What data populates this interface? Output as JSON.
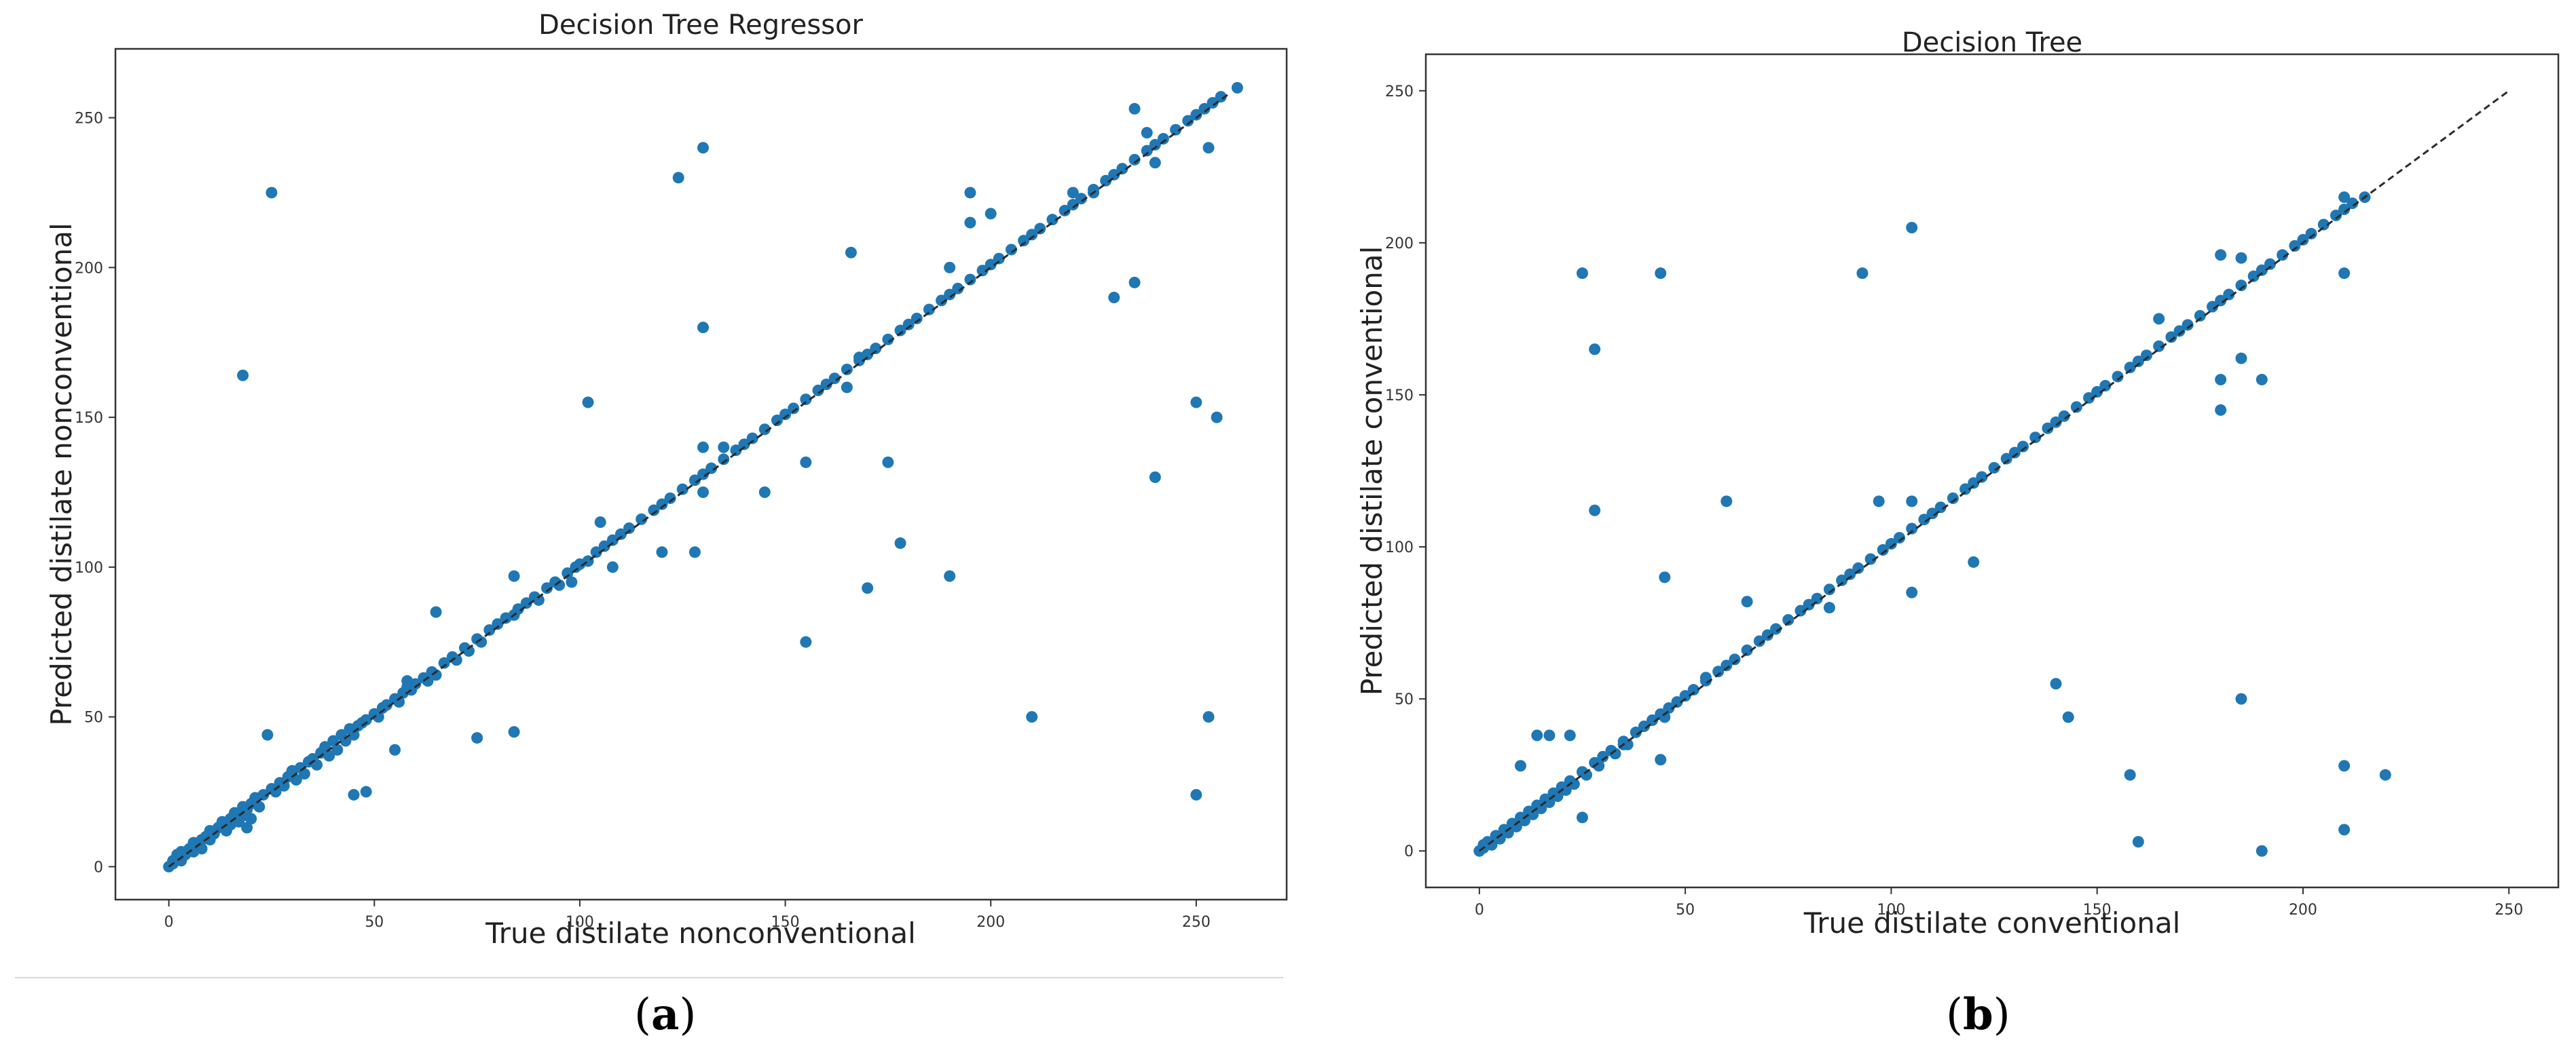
{
  "chart_data": [
    {
      "type": "scatter",
      "title": "Decision Tree Regressor",
      "xlabel": "True distilate nonconventional",
      "ylabel": "Predicted distilate nonconventional",
      "xlim": [
        -13,
        272
      ],
      "ylim": [
        -11,
        273
      ],
      "xticks": [
        0,
        50,
        100,
        150,
        200,
        250
      ],
      "yticks": [
        0,
        50,
        100,
        150,
        200,
        250
      ],
      "grid": false,
      "diagonal": [
        0,
        258
      ],
      "panel_label_open": "(",
      "panel_label_letter": "a",
      "panel_label_close": ")",
      "points": [
        [
          0,
          0
        ],
        [
          1,
          2
        ],
        [
          1,
          1
        ],
        [
          2,
          3
        ],
        [
          2,
          4
        ],
        [
          3,
          2
        ],
        [
          3,
          5
        ],
        [
          4,
          4
        ],
        [
          5,
          6
        ],
        [
          6,
          5
        ],
        [
          6,
          8
        ],
        [
          7,
          7
        ],
        [
          8,
          9
        ],
        [
          8,
          6
        ],
        [
          9,
          10
        ],
        [
          10,
          9
        ],
        [
          10,
          12
        ],
        [
          11,
          11
        ],
        [
          12,
          13
        ],
        [
          13,
          15
        ],
        [
          14,
          12
        ],
        [
          15,
          14
        ],
        [
          15,
          16
        ],
        [
          16,
          18
        ],
        [
          17,
          15
        ],
        [
          18,
          20
        ],
        [
          18,
          17
        ],
        [
          19,
          19
        ],
        [
          19,
          13
        ],
        [
          20,
          21
        ],
        [
          20,
          16
        ],
        [
          21,
          23
        ],
        [
          22,
          20
        ],
        [
          23,
          24
        ],
        [
          25,
          26
        ],
        [
          26,
          25
        ],
        [
          27,
          28
        ],
        [
          28,
          27
        ],
        [
          29,
          30
        ],
        [
          30,
          32
        ],
        [
          31,
          29
        ],
        [
          32,
          33
        ],
        [
          33,
          31
        ],
        [
          34,
          35
        ],
        [
          35,
          36
        ],
        [
          36,
          34
        ],
        [
          37,
          38
        ],
        [
          38,
          40
        ],
        [
          39,
          37
        ],
        [
          40,
          42
        ],
        [
          41,
          39
        ],
        [
          42,
          44
        ],
        [
          43,
          42
        ],
        [
          44,
          46
        ],
        [
          45,
          44
        ],
        [
          46,
          47
        ],
        [
          47,
          48
        ],
        [
          48,
          49
        ],
        [
          50,
          51
        ],
        [
          51,
          50
        ],
        [
          52,
          53
        ],
        [
          53,
          54
        ],
        [
          55,
          56
        ],
        [
          56,
          55
        ],
        [
          57,
          58
        ],
        [
          58,
          60
        ],
        [
          59,
          59
        ],
        [
          60,
          61
        ],
        [
          62,
          63
        ],
        [
          63,
          62
        ],
        [
          64,
          65
        ],
        [
          65,
          64
        ],
        [
          67,
          68
        ],
        [
          69,
          70
        ],
        [
          70,
          69
        ],
        [
          72,
          73
        ],
        [
          73,
          72
        ],
        [
          75,
          76
        ],
        [
          76,
          75
        ],
        [
          78,
          79
        ],
        [
          80,
          81
        ],
        [
          82,
          83
        ],
        [
          84,
          84
        ],
        [
          85,
          86
        ],
        [
          87,
          88
        ],
        [
          89,
          90
        ],
        [
          90,
          89
        ],
        [
          92,
          93
        ],
        [
          94,
          95
        ],
        [
          95,
          94
        ],
        [
          97,
          98
        ],
        [
          99,
          100
        ],
        [
          100,
          101
        ],
        [
          102,
          102
        ],
        [
          104,
          105
        ],
        [
          106,
          107
        ],
        [
          108,
          109
        ],
        [
          110,
          111
        ],
        [
          112,
          113
        ],
        [
          115,
          116
        ],
        [
          118,
          119
        ],
        [
          120,
          121
        ],
        [
          122,
          123
        ],
        [
          125,
          126
        ],
        [
          128,
          129
        ],
        [
          130,
          131
        ],
        [
          132,
          133
        ],
        [
          135,
          136
        ],
        [
          138,
          139
        ],
        [
          140,
          141
        ],
        [
          142,
          143
        ],
        [
          145,
          146
        ],
        [
          148,
          149
        ],
        [
          150,
          151
        ],
        [
          152,
          153
        ],
        [
          155,
          156
        ],
        [
          158,
          159
        ],
        [
          160,
          161
        ],
        [
          162,
          163
        ],
        [
          165,
          166
        ],
        [
          168,
          169
        ],
        [
          170,
          171
        ],
        [
          172,
          173
        ],
        [
          175,
          176
        ],
        [
          178,
          179
        ],
        [
          180,
          181
        ],
        [
          182,
          183
        ],
        [
          185,
          186
        ],
        [
          188,
          189
        ],
        [
          190,
          191
        ],
        [
          192,
          193
        ],
        [
          195,
          196
        ],
        [
          198,
          199
        ],
        [
          200,
          201
        ],
        [
          202,
          203
        ],
        [
          205,
          206
        ],
        [
          208,
          209
        ],
        [
          210,
          211
        ],
        [
          212,
          213
        ],
        [
          215,
          216
        ],
        [
          218,
          219
        ],
        [
          220,
          221
        ],
        [
          222,
          223
        ],
        [
          225,
          226
        ],
        [
          228,
          229
        ],
        [
          230,
          231
        ],
        [
          232,
          233
        ],
        [
          235,
          236
        ],
        [
          238,
          239
        ],
        [
          240,
          241
        ],
        [
          242,
          243
        ],
        [
          245,
          246
        ],
        [
          248,
          249
        ],
        [
          250,
          251
        ],
        [
          252,
          253
        ],
        [
          254,
          255
        ],
        [
          256,
          257
        ],
        [
          260,
          260
        ],
        [
          25,
          225
        ],
        [
          18,
          164
        ],
        [
          24,
          44
        ],
        [
          45,
          24
        ],
        [
          48,
          25
        ],
        [
          55,
          39
        ],
        [
          58,
          62
        ],
        [
          65,
          85
        ],
        [
          75,
          43
        ],
        [
          84,
          45
        ],
        [
          84,
          97
        ],
        [
          98,
          95
        ],
        [
          102,
          155
        ],
        [
          105,
          115
        ],
        [
          108,
          100
        ],
        [
          120,
          105
        ],
        [
          124,
          230
        ],
        [
          128,
          105
        ],
        [
          130,
          240
        ],
        [
          130,
          180
        ],
        [
          130,
          140
        ],
        [
          130,
          125
        ],
        [
          135,
          140
        ],
        [
          145,
          125
        ],
        [
          155,
          135
        ],
        [
          155,
          75
        ],
        [
          165,
          160
        ],
        [
          166,
          205
        ],
        [
          168,
          170
        ],
        [
          170,
          93
        ],
        [
          175,
          135
        ],
        [
          178,
          108
        ],
        [
          190,
          200
        ],
        [
          190,
          97
        ],
        [
          195,
          225
        ],
        [
          195,
          215
        ],
        [
          200,
          218
        ],
        [
          210,
          50
        ],
        [
          220,
          225
        ],
        [
          225,
          225
        ],
        [
          230,
          190
        ],
        [
          235,
          195
        ],
        [
          235,
          253
        ],
        [
          238,
          245
        ],
        [
          240,
          235
        ],
        [
          240,
          130
        ],
        [
          250,
          155
        ],
        [
          250,
          24
        ],
        [
          253,
          240
        ],
        [
          253,
          50
        ],
        [
          255,
          150
        ]
      ]
    },
    {
      "type": "scatter",
      "title": "Decision Tree",
      "xlabel": "True distilate conventional",
      "ylabel": "Predicted distilate conventional",
      "xlim": [
        -13,
        262
      ],
      "ylim": [
        -12,
        262
      ],
      "xticks": [
        0,
        50,
        100,
        150,
        200,
        250
      ],
      "yticks": [
        0,
        50,
        100,
        150,
        200,
        250
      ],
      "grid": false,
      "diagonal": [
        0,
        250
      ],
      "panel_label_open": "(",
      "panel_label_letter": "b",
      "panel_label_close": ")",
      "points": [
        [
          0,
          0
        ],
        [
          1,
          1
        ],
        [
          1,
          2
        ],
        [
          2,
          3
        ],
        [
          3,
          2
        ],
        [
          4,
          5
        ],
        [
          5,
          4
        ],
        [
          6,
          7
        ],
        [
          7,
          6
        ],
        [
          8,
          9
        ],
        [
          9,
          8
        ],
        [
          10,
          11
        ],
        [
          11,
          10
        ],
        [
          12,
          13
        ],
        [
          13,
          12
        ],
        [
          14,
          15
        ],
        [
          15,
          14
        ],
        [
          16,
          17
        ],
        [
          17,
          16
        ],
        [
          18,
          19
        ],
        [
          19,
          18
        ],
        [
          20,
          21
        ],
        [
          21,
          20
        ],
        [
          22,
          23
        ],
        [
          23,
          22
        ],
        [
          25,
          26
        ],
        [
          26,
          25
        ],
        [
          28,
          29
        ],
        [
          29,
          28
        ],
        [
          30,
          31
        ],
        [
          32,
          33
        ],
        [
          33,
          32
        ],
        [
          35,
          36
        ],
        [
          36,
          35
        ],
        [
          38,
          39
        ],
        [
          40,
          41
        ],
        [
          42,
          43
        ],
        [
          44,
          45
        ],
        [
          45,
          44
        ],
        [
          46,
          47
        ],
        [
          48,
          49
        ],
        [
          50,
          51
        ],
        [
          52,
          53
        ],
        [
          55,
          56
        ],
        [
          58,
          59
        ],
        [
          60,
          61
        ],
        [
          62,
          63
        ],
        [
          65,
          66
        ],
        [
          68,
          69
        ],
        [
          70,
          71
        ],
        [
          72,
          73
        ],
        [
          75,
          76
        ],
        [
          78,
          79
        ],
        [
          80,
          81
        ],
        [
          82,
          83
        ],
        [
          85,
          86
        ],
        [
          88,
          89
        ],
        [
          90,
          91
        ],
        [
          92,
          93
        ],
        [
          95,
          96
        ],
        [
          98,
          99
        ],
        [
          100,
          101
        ],
        [
          102,
          103
        ],
        [
          105,
          106
        ],
        [
          108,
          109
        ],
        [
          110,
          111
        ],
        [
          112,
          113
        ],
        [
          115,
          116
        ],
        [
          118,
          119
        ],
        [
          120,
          121
        ],
        [
          122,
          123
        ],
        [
          125,
          126
        ],
        [
          128,
          129
        ],
        [
          130,
          131
        ],
        [
          132,
          133
        ],
        [
          135,
          136
        ],
        [
          138,
          139
        ],
        [
          140,
          141
        ],
        [
          142,
          143
        ],
        [
          145,
          146
        ],
        [
          148,
          149
        ],
        [
          150,
          151
        ],
        [
          152,
          153
        ],
        [
          155,
          156
        ],
        [
          158,
          159
        ],
        [
          160,
          161
        ],
        [
          162,
          163
        ],
        [
          165,
          166
        ],
        [
          168,
          169
        ],
        [
          170,
          171
        ],
        [
          172,
          173
        ],
        [
          175,
          176
        ],
        [
          178,
          179
        ],
        [
          180,
          181
        ],
        [
          182,
          183
        ],
        [
          185,
          186
        ],
        [
          188,
          189
        ],
        [
          190,
          191
        ],
        [
          192,
          193
        ],
        [
          195,
          196
        ],
        [
          198,
          199
        ],
        [
          200,
          201
        ],
        [
          202,
          203
        ],
        [
          205,
          206
        ],
        [
          208,
          209
        ],
        [
          210,
          211
        ],
        [
          212,
          213
        ],
        [
          215,
          215
        ],
        [
          10,
          28
        ],
        [
          14,
          38
        ],
        [
          17,
          38
        ],
        [
          22,
          38
        ],
        [
          25,
          11
        ],
        [
          25,
          190
        ],
        [
          28,
          165
        ],
        [
          28,
          112
        ],
        [
          35,
          35
        ],
        [
          44,
          30
        ],
        [
          44,
          190
        ],
        [
          45,
          90
        ],
        [
          55,
          57
        ],
        [
          60,
          115
        ],
        [
          65,
          82
        ],
        [
          85,
          80
        ],
        [
          93,
          190
        ],
        [
          97,
          115
        ],
        [
          105,
          205
        ],
        [
          105,
          115
        ],
        [
          105,
          85
        ],
        [
          120,
          95
        ],
        [
          140,
          55
        ],
        [
          143,
          44
        ],
        [
          158,
          25
        ],
        [
          160,
          3
        ],
        [
          165,
          175
        ],
        [
          180,
          196
        ],
        [
          180,
          155
        ],
        [
          180,
          145
        ],
        [
          185,
          50
        ],
        [
          185,
          195
        ],
        [
          185,
          162
        ],
        [
          190,
          0
        ],
        [
          190,
          155
        ],
        [
          210,
          28
        ],
        [
          210,
          7
        ],
        [
          210,
          190
        ],
        [
          210,
          215
        ],
        [
          220,
          25
        ]
      ]
    }
  ]
}
